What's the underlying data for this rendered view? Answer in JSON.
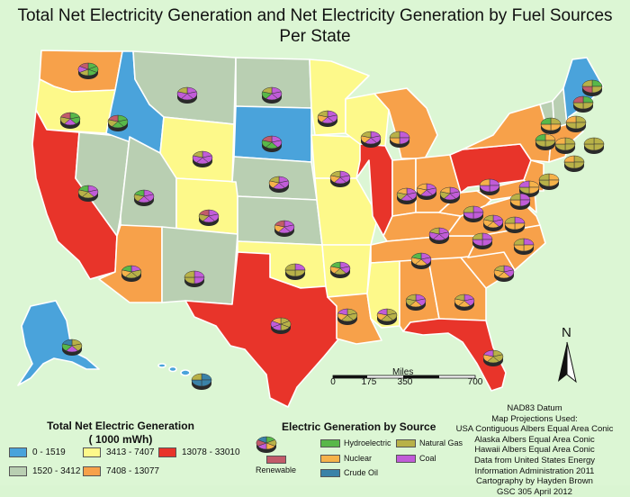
{
  "title": {
    "line1": "Total Net Electricity Generation and Net Electricity Generation by Fuel Sources",
    "line2": "Per State"
  },
  "legend_total": {
    "title_line1": "Total Net Electric Generation",
    "title_line2": "( 1000 mWh)",
    "classes": [
      {
        "label": "0 - 1519",
        "color": "#4aa3db"
      },
      {
        "label": "1520 - 3412",
        "color": "#b9cfb2"
      },
      {
        "label": "3413 - 7407",
        "color": "#fdf98a"
      },
      {
        "label": "7408 - 13077",
        "color": "#f7a14a"
      },
      {
        "label": "13078 - 33010",
        "color": "#e8342a"
      }
    ]
  },
  "legend_source": {
    "title": "Electric Generation by Source",
    "items": [
      {
        "label": "Hydroelectric",
        "color": "#58b849"
      },
      {
        "label": "Natural Gas",
        "color": "#b8b148"
      },
      {
        "label": "Nuclear",
        "color": "#f6b24a"
      },
      {
        "label": "Coal",
        "color": "#c15cd8"
      },
      {
        "label": "Renewable",
        "color": "#c25b6a"
      },
      {
        "label": "Crude Oil",
        "color": "#3a82a8"
      }
    ]
  },
  "scale": {
    "unit": "Miles",
    "ticks": [
      "0",
      "175",
      "350",
      "700"
    ]
  },
  "north": "N",
  "credits": [
    "NAD83 Datum",
    "Map Projections Used:",
    "USA Contiguous Albers Equal Area Conic",
    "Alaska Albers Equal  Area Conic",
    "Hawaii Albers Equal Area Conic",
    "Data from United States Energy",
    "Information Administration 2011",
    "Cartography by Hayden Brown",
    "GSC 305 April 2012"
  ],
  "colors": {
    "background": "#dcf6d4",
    "border": "#ffffff",
    "pie_side": "#2a2a2a"
  }
}
